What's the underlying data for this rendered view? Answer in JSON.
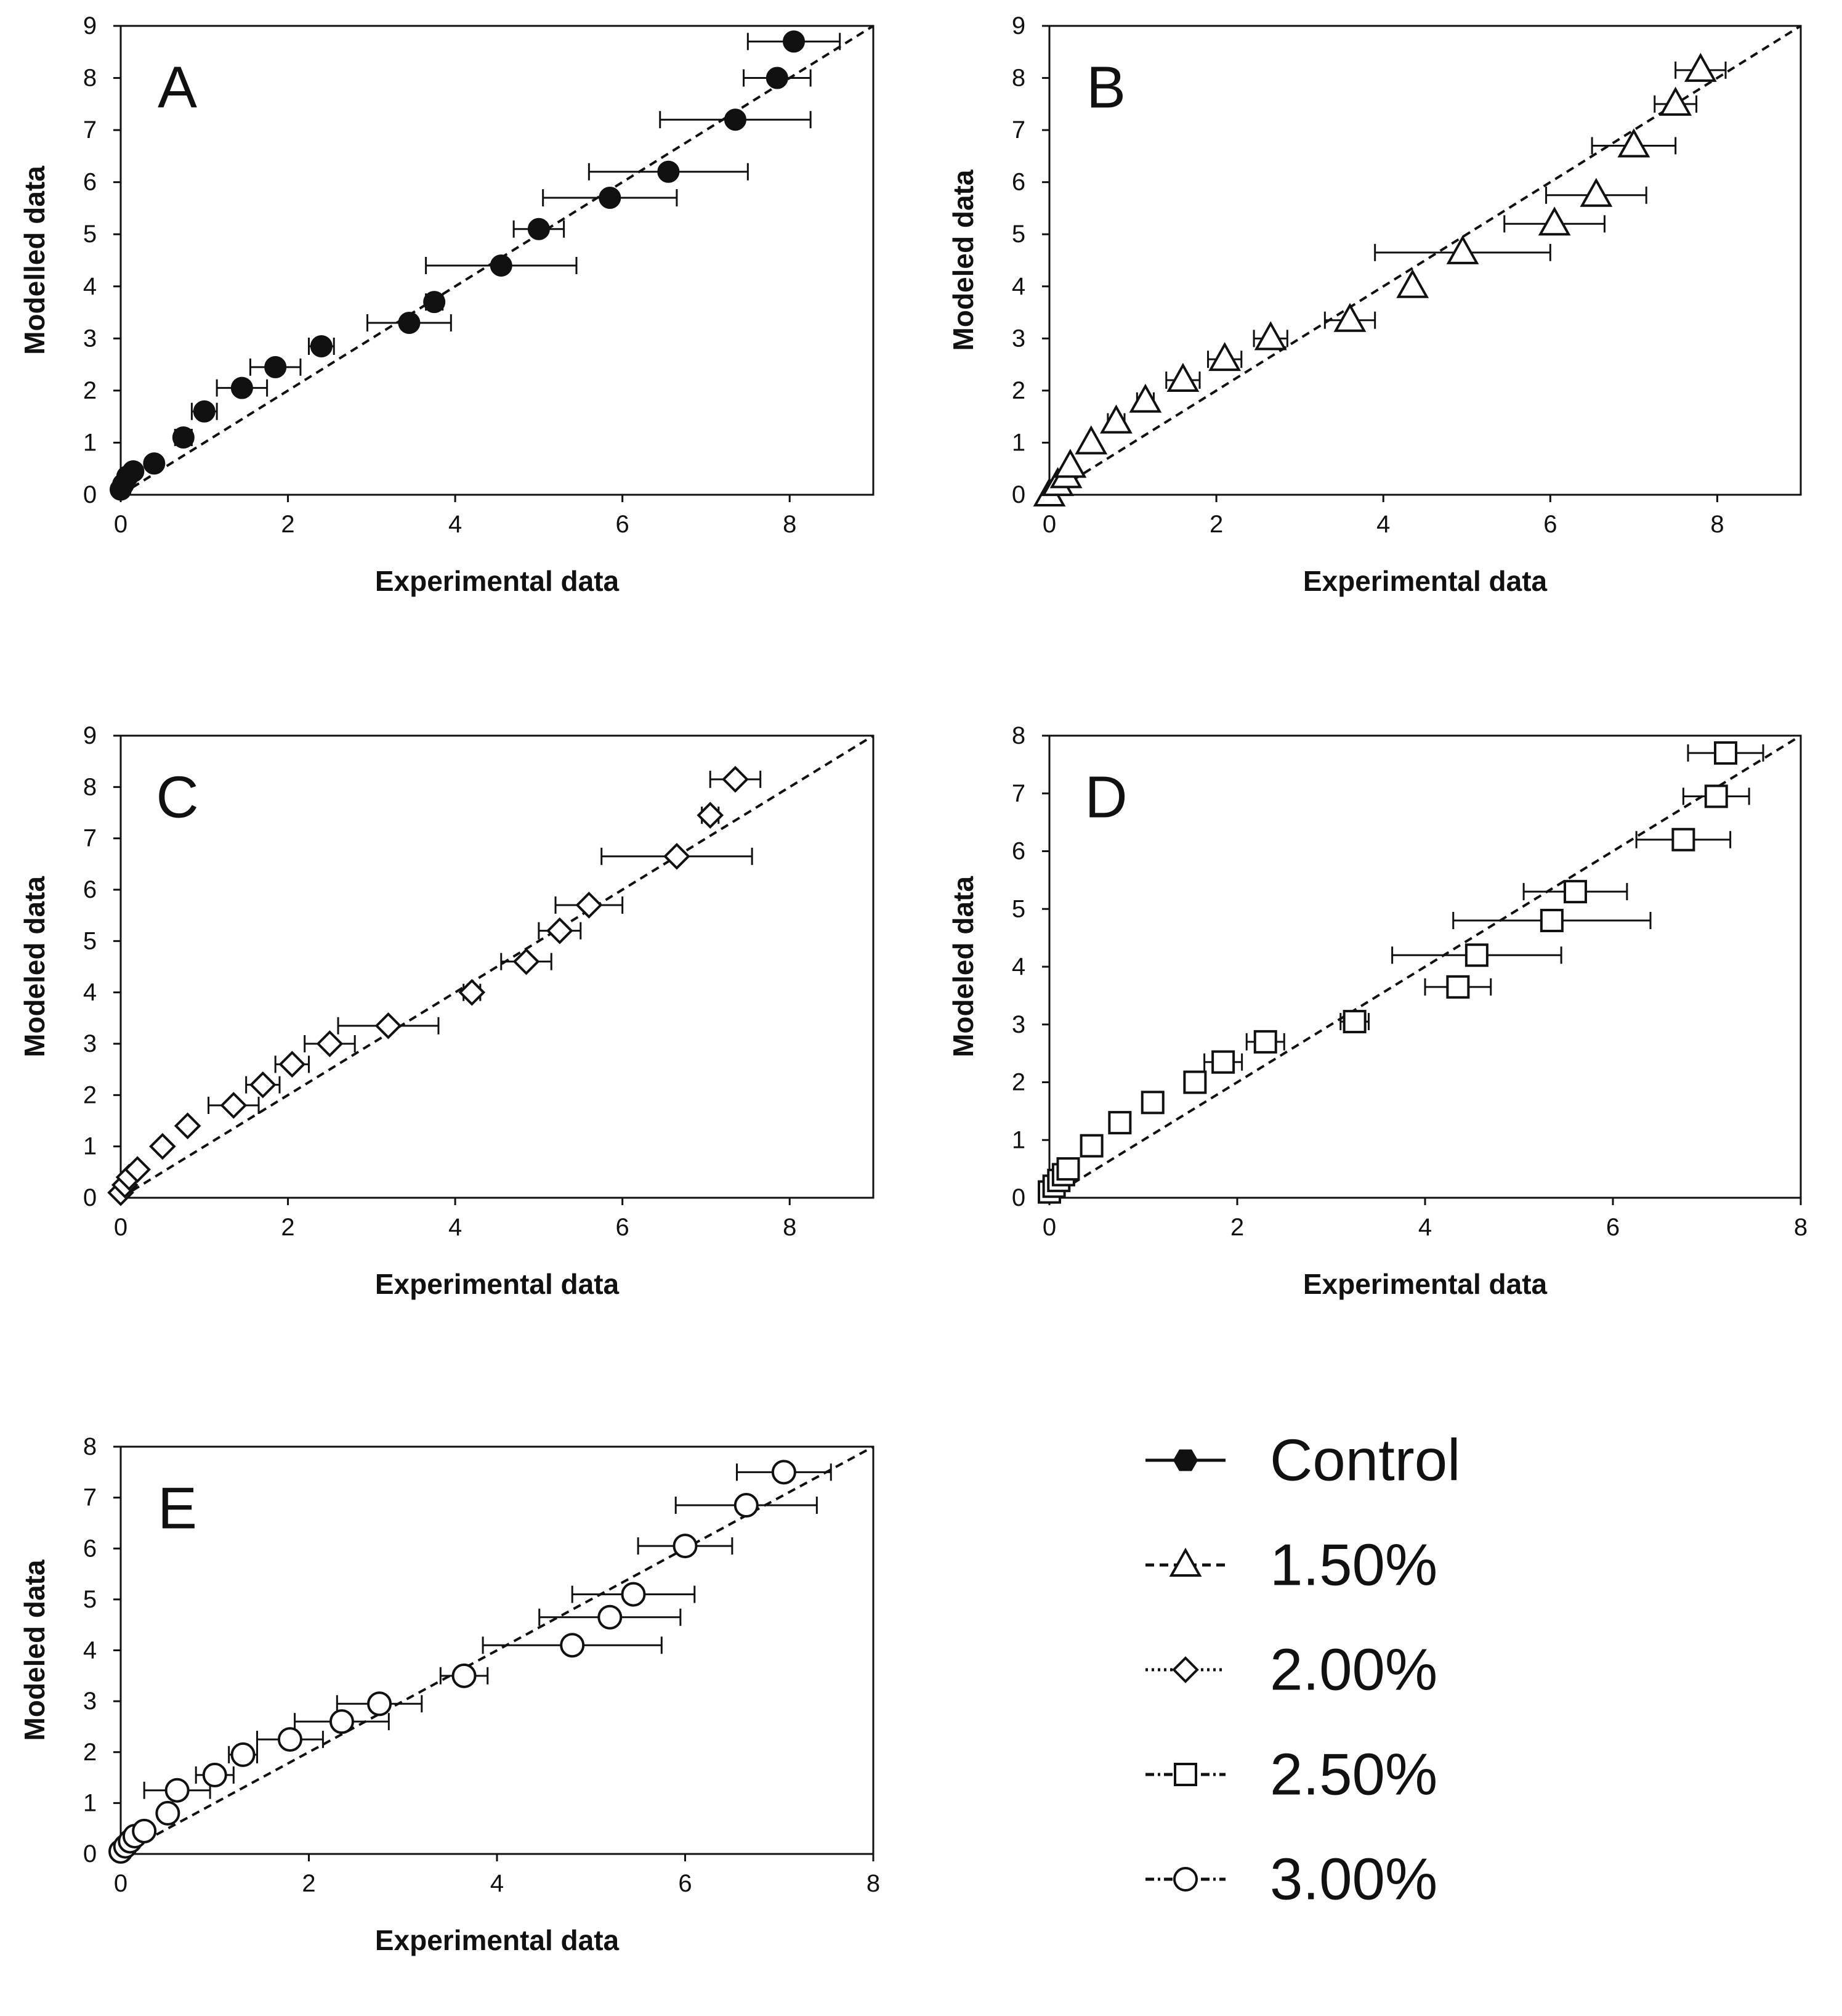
{
  "chart_data": [
    {
      "panel": "A",
      "type": "scatter",
      "xlabel": "Experimental data",
      "ylabel": "Modelled data",
      "xlim": [
        0,
        9
      ],
      "ylim": [
        0,
        9
      ],
      "xticks": [
        0,
        2,
        4,
        6,
        8
      ],
      "yticks": [
        0,
        1,
        2,
        3,
        4,
        5,
        6,
        7,
        8,
        9
      ],
      "marker": "filled-circle",
      "reference_line": "1:1 dashed",
      "points": [
        {
          "x": 0.0,
          "y": 0.1,
          "xerr": 0
        },
        {
          "x": 0.03,
          "y": 0.2,
          "xerr": 0
        },
        {
          "x": 0.08,
          "y": 0.35,
          "xerr": 0
        },
        {
          "x": 0.15,
          "y": 0.45,
          "xerr": 0
        },
        {
          "x": 0.4,
          "y": 0.6,
          "xerr": 0.05
        },
        {
          "x": 0.75,
          "y": 1.1,
          "xerr": 0.1
        },
        {
          "x": 1.0,
          "y": 1.6,
          "xerr": 0.15
        },
        {
          "x": 1.45,
          "y": 2.05,
          "xerr": 0.3
        },
        {
          "x": 1.85,
          "y": 2.45,
          "xerr": 0.3
        },
        {
          "x": 2.4,
          "y": 2.85,
          "xerr": 0.15
        },
        {
          "x": 3.45,
          "y": 3.3,
          "xerr": 0.5
        },
        {
          "x": 3.75,
          "y": 3.7,
          "xerr": 0.1
        },
        {
          "x": 4.55,
          "y": 4.4,
          "xerr": 0.9
        },
        {
          "x": 5.0,
          "y": 5.1,
          "xerr": 0.3
        },
        {
          "x": 5.85,
          "y": 5.7,
          "xerr": 0.8
        },
        {
          "x": 6.55,
          "y": 6.2,
          "xerr": 0.95
        },
        {
          "x": 7.35,
          "y": 7.2,
          "xerr": 0.9
        },
        {
          "x": 7.85,
          "y": 8.0,
          "xerr": 0.4
        },
        {
          "x": 8.05,
          "y": 8.7,
          "xerr": 0.55
        }
      ]
    },
    {
      "panel": "B",
      "type": "scatter",
      "xlabel": "Experimental data",
      "ylabel": "Modeled data",
      "xlim": [
        0,
        9
      ],
      "ylim": [
        0,
        9
      ],
      "xticks": [
        0,
        2,
        4,
        6,
        8
      ],
      "yticks": [
        0,
        1,
        2,
        3,
        4,
        5,
        6,
        7,
        8,
        9
      ],
      "marker": "open-triangle",
      "reference_line": "1:1 dashed",
      "points": [
        {
          "x": 0.0,
          "y": 0.0,
          "xerr": 0
        },
        {
          "x": 0.1,
          "y": 0.2,
          "xerr": 0
        },
        {
          "x": 0.2,
          "y": 0.35,
          "xerr": 0.05
        },
        {
          "x": 0.25,
          "y": 0.55,
          "xerr": 0.05
        },
        {
          "x": 0.5,
          "y": 1.0,
          "xerr": 0.05
        },
        {
          "x": 0.8,
          "y": 1.4,
          "xerr": 0.1
        },
        {
          "x": 1.15,
          "y": 1.8,
          "xerr": 0.1
        },
        {
          "x": 1.6,
          "y": 2.2,
          "xerr": 0.2
        },
        {
          "x": 2.1,
          "y": 2.6,
          "xerr": 0.2
        },
        {
          "x": 2.65,
          "y": 3.0,
          "xerr": 0.2
        },
        {
          "x": 3.6,
          "y": 3.35,
          "xerr": 0.3
        },
        {
          "x": 4.35,
          "y": 4.0,
          "xerr": 0.05
        },
        {
          "x": 4.95,
          "y": 4.65,
          "xerr": 1.05
        },
        {
          "x": 6.05,
          "y": 5.2,
          "xerr": 0.6
        },
        {
          "x": 6.55,
          "y": 5.75,
          "xerr": 0.6
        },
        {
          "x": 7.0,
          "y": 6.7,
          "xerr": 0.5
        },
        {
          "x": 7.5,
          "y": 7.5,
          "xerr": 0.25
        },
        {
          "x": 7.8,
          "y": 8.15,
          "xerr": 0.3
        }
      ]
    },
    {
      "panel": "C",
      "type": "scatter",
      "xlabel": "Experimental data",
      "ylabel": "Modeled data",
      "xlim": [
        0,
        9
      ],
      "ylim": [
        0,
        9
      ],
      "xticks": [
        0,
        2,
        4,
        6,
        8
      ],
      "yticks": [
        0,
        1,
        2,
        3,
        4,
        5,
        6,
        7,
        8,
        9
      ],
      "marker": "open-diamond",
      "reference_line": "1:1 dashed",
      "points": [
        {
          "x": 0.0,
          "y": 0.1,
          "xerr": 0
        },
        {
          "x": 0.05,
          "y": 0.25,
          "xerr": 0
        },
        {
          "x": 0.1,
          "y": 0.4,
          "xerr": 0
        },
        {
          "x": 0.2,
          "y": 0.55,
          "xerr": 0
        },
        {
          "x": 0.5,
          "y": 1.0,
          "xerr": 0.05
        },
        {
          "x": 0.8,
          "y": 1.4,
          "xerr": 0.05
        },
        {
          "x": 1.35,
          "y": 1.8,
          "xerr": 0.3
        },
        {
          "x": 1.7,
          "y": 2.2,
          "xerr": 0.2
        },
        {
          "x": 2.05,
          "y": 2.6,
          "xerr": 0.2
        },
        {
          "x": 2.5,
          "y": 3.0,
          "xerr": 0.3
        },
        {
          "x": 3.2,
          "y": 3.35,
          "xerr": 0.6
        },
        {
          "x": 4.2,
          "y": 4.0,
          "xerr": 0.1
        },
        {
          "x": 4.85,
          "y": 4.6,
          "xerr": 0.3
        },
        {
          "x": 5.25,
          "y": 5.2,
          "xerr": 0.25
        },
        {
          "x": 5.6,
          "y": 5.7,
          "xerr": 0.4
        },
        {
          "x": 6.65,
          "y": 6.65,
          "xerr": 0.9
        },
        {
          "x": 7.05,
          "y": 7.45,
          "xerr": 0.1
        },
        {
          "x": 7.35,
          "y": 8.15,
          "xerr": 0.3
        }
      ]
    },
    {
      "panel": "D",
      "type": "scatter",
      "xlabel": "Experimental data",
      "ylabel": "Modeled data",
      "xlim": [
        0,
        8
      ],
      "ylim": [
        0,
        8
      ],
      "xticks": [
        0,
        2,
        4,
        6,
        8
      ],
      "yticks": [
        0,
        1,
        2,
        3,
        4,
        5,
        6,
        7,
        8
      ],
      "marker": "open-square",
      "reference_line": "1:1 dashed",
      "points": [
        {
          "x": 0.0,
          "y": 0.1,
          "xerr": 0
        },
        {
          "x": 0.05,
          "y": 0.2,
          "xerr": 0
        },
        {
          "x": 0.1,
          "y": 0.3,
          "xerr": 0
        },
        {
          "x": 0.15,
          "y": 0.4,
          "xerr": 0.05
        },
        {
          "x": 0.2,
          "y": 0.5,
          "xerr": 0.05
        },
        {
          "x": 0.45,
          "y": 0.9,
          "xerr": 0.05
        },
        {
          "x": 0.75,
          "y": 1.3,
          "xerr": 0.1
        },
        {
          "x": 1.1,
          "y": 1.65,
          "xerr": 0.1
        },
        {
          "x": 1.55,
          "y": 2.0,
          "xerr": 0.1
        },
        {
          "x": 1.85,
          "y": 2.35,
          "xerr": 0.2
        },
        {
          "x": 2.3,
          "y": 2.7,
          "xerr": 0.2
        },
        {
          "x": 3.25,
          "y": 3.05,
          "xerr": 0.15
        },
        {
          "x": 4.35,
          "y": 3.65,
          "xerr": 0.35
        },
        {
          "x": 4.55,
          "y": 4.2,
          "xerr": 0.9
        },
        {
          "x": 5.35,
          "y": 4.8,
          "xerr": 1.05
        },
        {
          "x": 5.6,
          "y": 5.3,
          "xerr": 0.55
        },
        {
          "x": 6.75,
          "y": 6.2,
          "xerr": 0.5
        },
        {
          "x": 7.1,
          "y": 6.95,
          "xerr": 0.35
        },
        {
          "x": 7.2,
          "y": 7.7,
          "xerr": 0.4
        }
      ]
    },
    {
      "panel": "E",
      "type": "scatter",
      "xlabel": "Experimental data",
      "ylabel": "Modeled data",
      "xlim": [
        0,
        8
      ],
      "ylim": [
        0,
        8
      ],
      "xticks": [
        0,
        2,
        4,
        6,
        8
      ],
      "yticks": [
        0,
        1,
        2,
        3,
        4,
        5,
        6,
        7,
        8
      ],
      "marker": "open-circle",
      "reference_line": "1:1 dashed",
      "points": [
        {
          "x": 0.0,
          "y": 0.05,
          "xerr": 0
        },
        {
          "x": 0.05,
          "y": 0.15,
          "xerr": 0
        },
        {
          "x": 0.1,
          "y": 0.25,
          "xerr": 0
        },
        {
          "x": 0.15,
          "y": 0.35,
          "xerr": 0
        },
        {
          "x": 0.25,
          "y": 0.45,
          "xerr": 0.05
        },
        {
          "x": 0.5,
          "y": 0.8,
          "xerr": 0.05
        },
        {
          "x": 0.6,
          "y": 1.25,
          "xerr": 0.35
        },
        {
          "x": 1.0,
          "y": 1.55,
          "xerr": 0.2
        },
        {
          "x": 1.3,
          "y": 1.95,
          "xerr": 0.15
        },
        {
          "x": 1.8,
          "y": 2.25,
          "xerr": 0.35
        },
        {
          "x": 2.35,
          "y": 2.6,
          "xerr": 0.5
        },
        {
          "x": 2.75,
          "y": 2.95,
          "xerr": 0.45
        },
        {
          "x": 3.65,
          "y": 3.5,
          "xerr": 0.25
        },
        {
          "x": 4.8,
          "y": 4.1,
          "xerr": 0.95
        },
        {
          "x": 5.2,
          "y": 4.65,
          "xerr": 0.75
        },
        {
          "x": 5.45,
          "y": 5.1,
          "xerr": 0.65
        },
        {
          "x": 6.0,
          "y": 6.05,
          "xerr": 0.5
        },
        {
          "x": 6.65,
          "y": 6.85,
          "xerr": 0.75
        },
        {
          "x": 7.05,
          "y": 7.5,
          "xerr": 0.5
        }
      ]
    }
  ],
  "legend": [
    {
      "label": "Control",
      "marker": "filled-hexagon",
      "line": "solid"
    },
    {
      "label": "1.50%",
      "marker": "open-triangle",
      "line": "dashed"
    },
    {
      "label": "2.00%",
      "marker": "open-diamond",
      "line": "dotted"
    },
    {
      "label": "2.50%",
      "marker": "open-square",
      "line": "dash-dot"
    },
    {
      "label": "3.00%",
      "marker": "open-circle",
      "line": "dash-dot"
    }
  ],
  "colors": {
    "ink": "#111111",
    "background": "#ffffff"
  }
}
